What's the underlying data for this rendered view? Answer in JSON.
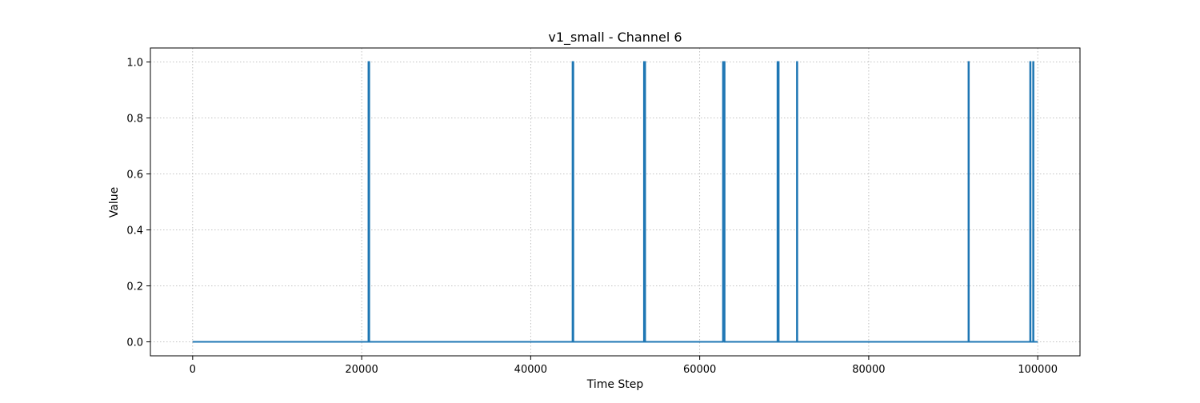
{
  "chart_data": {
    "type": "line",
    "title": "v1_small - Channel 6",
    "xlabel": "Time Step",
    "ylabel": "Value",
    "xlim": [
      -5000,
      105000
    ],
    "ylim": [
      -0.05,
      1.05
    ],
    "x_ticks": [
      0,
      20000,
      40000,
      60000,
      80000,
      100000
    ],
    "x_tick_labels": [
      "0",
      "20000",
      "40000",
      "60000",
      "80000",
      "100000"
    ],
    "y_ticks": [
      0.0,
      0.2,
      0.4,
      0.6,
      0.8,
      1.0
    ],
    "y_tick_labels": [
      "0.0",
      "0.2",
      "0.4",
      "0.6",
      "0.8",
      "1.0"
    ],
    "grid": true,
    "series": [
      {
        "color": "#1f77b4",
        "x_range": [
          0,
          99999
        ],
        "baseline": 0,
        "pulses": [
          {
            "start": 20800,
            "end": 20900,
            "value": 1
          },
          {
            "start": 44950,
            "end": 45050,
            "value": 1
          },
          {
            "start": 53400,
            "end": 53550,
            "value": 1
          },
          {
            "start": 62750,
            "end": 62950,
            "value": 1
          },
          {
            "start": 69200,
            "end": 69350,
            "value": 1
          },
          {
            "start": 71500,
            "end": 71550,
            "value": 1
          },
          {
            "start": 91800,
            "end": 91850,
            "value": 1
          },
          {
            "start": 99100,
            "end": 99150,
            "value": 1
          },
          {
            "start": 99450,
            "end": 99500,
            "value": 1
          }
        ]
      }
    ]
  }
}
